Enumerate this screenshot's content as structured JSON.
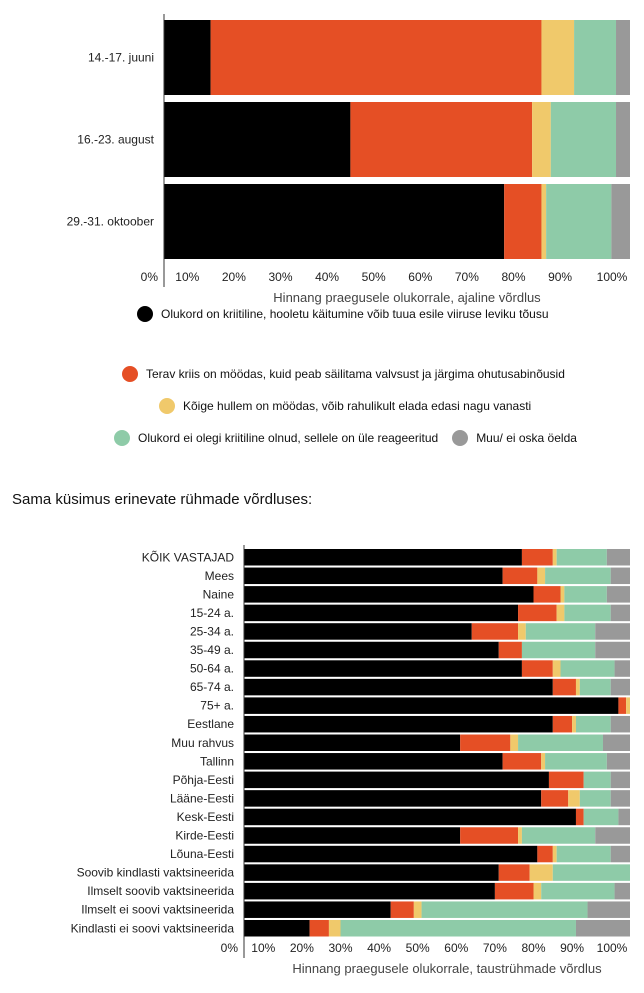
{
  "heading": "Sama küsimus erinevate rühmade võrdluses:",
  "colors": {
    "critical": "#000000",
    "sharp": "#e54f25",
    "worst": "#f0c96b",
    "notcritical": "#8ecba8",
    "dontknow": "#999999"
  },
  "legend": [
    {
      "key": "critical",
      "label": "Olukord on kriitiline, hooletu käitumine võib tuua esile viiruse leviku tõusu"
    },
    {
      "key": "sharp",
      "label": "Terav kriis on möödas, kuid peab säilitama valvsust ja järgima ohutusabinõusid"
    },
    {
      "key": "worst",
      "label": "Kõige hullem on möödas, võib rahulikult elada edasi nagu vanasti"
    },
    {
      "key": "notcritical",
      "label": "Olukord ei olegi kriitiline olnud, sellele on üle reageeritud"
    },
    {
      "key": "dontknow",
      "label": "Muu/ ei oska öelda"
    }
  ],
  "chart_data": [
    {
      "type": "bar",
      "orientation": "horizontal",
      "stacked": true,
      "categories": [
        "14.-17. juuni",
        "16.-23. august",
        "29.-31. oktoober"
      ],
      "xlabel": "Hinnang praegusele olukorrale, ajaline võrdlus",
      "xlim": [
        0,
        100
      ],
      "xticks": [
        "0%",
        "10%",
        "20%",
        "30%",
        "40%",
        "50%",
        "60%",
        "70%",
        "80%",
        "90%",
        "100%"
      ],
      "series": [
        {
          "key": "critical",
          "name": "Olukord on kriitiline, hooletu käitumine võib tuua esile viiruse leviku tõusu",
          "values": [
            10,
            40,
            73
          ]
        },
        {
          "key": "sharp",
          "name": "Terav kriis on möödas, kuid peab säilitama valvsust ja järgima ohutusabinõusid",
          "values": [
            71,
            39,
            8
          ]
        },
        {
          "key": "worst",
          "name": "Kõige hullem on möödas, võib rahulikult elada edasi nagu vanasti",
          "values": [
            7,
            4,
            1
          ]
        },
        {
          "key": "notcritical",
          "name": "Olukord ei olegi kriitiline olnud, sellele on üle reageeritud",
          "values": [
            9,
            14,
            14
          ]
        },
        {
          "key": "dontknow",
          "name": "Muu/ ei oska öelda",
          "values": [
            4,
            4,
            6
          ]
        }
      ]
    },
    {
      "type": "bar",
      "orientation": "horizontal",
      "stacked": true,
      "categories": [
        "KÕIK VASTAJAD",
        "Mees",
        "Naine",
        "15-24 a.",
        "25-34 a.",
        "35-49 a.",
        "50-64 a.",
        "65-74 a.",
        "75+ a.",
        "Eestlane",
        "Muu rahvus",
        "Tallinn",
        "Põhja-Eesti",
        "Lääne-Eesti",
        "Kesk-Eesti",
        "Kirde-Eesti",
        "Lõuna-Eesti",
        "Soovib kindlasti vaktsineerida",
        "Ilmselt soovib vaktsineerida",
        "Ilmselt ei soovi vaktsineerida",
        "Kindlasti ei soovi vaktsineerida"
      ],
      "xlabel": "Hinnang praegusele olukorrale, taustrühmade võrdlus",
      "xlim": [
        0,
        100
      ],
      "xticks": [
        "0%",
        "10%",
        "20%",
        "30%",
        "40%",
        "50%",
        "60%",
        "70%",
        "80%",
        "90%",
        "100%"
      ],
      "series": [
        {
          "key": "critical",
          "name": "Olukord on kriitiline, hooletu käitumine võib tuua esile viiruse leviku tõusu",
          "values": [
            72,
            67,
            75,
            71,
            59,
            66,
            72,
            80,
            97,
            80,
            56,
            67,
            79,
            77,
            86,
            56,
            76,
            66,
            65,
            38,
            17
          ]
        },
        {
          "key": "sharp",
          "name": "Terav kriis on möödas, kuid peab säilitama valvsust ja järgima ohutusabinõusid",
          "values": [
            8,
            9,
            7,
            10,
            12,
            6,
            8,
            6,
            2,
            5,
            13,
            10,
            9,
            7,
            2,
            15,
            4,
            8,
            10,
            6,
            5
          ]
        },
        {
          "key": "worst",
          "name": "Kõige hullem on möödas, võib rahulikult elada edasi nagu vanasti",
          "values": [
            1,
            2,
            1,
            2,
            2,
            0,
            2,
            1,
            2,
            1,
            2,
            1,
            0,
            3,
            0,
            1,
            1,
            6,
            2,
            2,
            3
          ]
        },
        {
          "key": "notcritical",
          "name": "Olukord ei olegi kriitiline olnud, sellele on üle reageeritud",
          "values": [
            13,
            17,
            11,
            12,
            18,
            19,
            14,
            8,
            0,
            9,
            22,
            16,
            7,
            8,
            9,
            19,
            14,
            20,
            19,
            43,
            61
          ]
        },
        {
          "key": "dontknow",
          "name": "Muu/ ei oska öelda",
          "values": [
            6,
            5,
            6,
            5,
            9,
            9,
            4,
            5,
            2,
            5,
            7,
            6,
            5,
            5,
            3,
            9,
            5,
            0,
            4,
            11,
            14
          ]
        }
      ]
    }
  ]
}
